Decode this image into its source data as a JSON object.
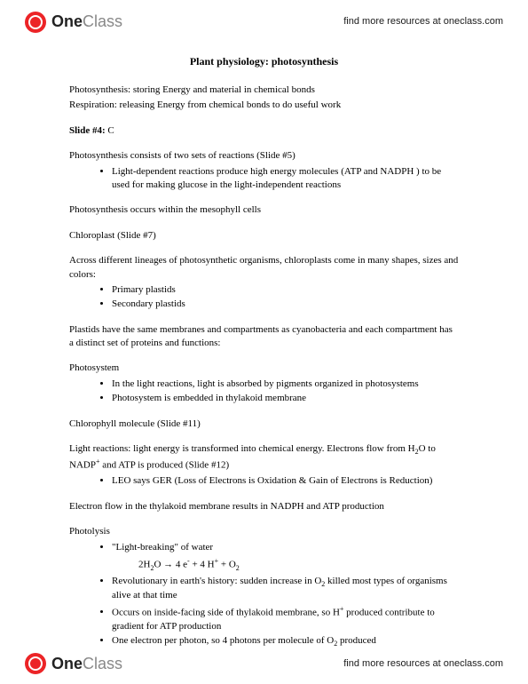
{
  "header": {
    "logo_one": "One",
    "logo_class": "Class",
    "link": "find more resources at oneclass.com"
  },
  "doc": {
    "title": "Plant physiology: photosynthesis",
    "p1": "Photosynthesis: storing Energy and material in chemical bonds",
    "p2": "Respiration: releasing Energy from chemical bonds to do useful work",
    "slide4_label": "Slide #4:",
    "slide4_answer": " C",
    "p3": "Photosynthesis consists of two sets of reactions (Slide #5)",
    "b1": "Light-dependent reactions produce high energy molecules (ATP and NADPH ) to be used for making glucose in the light-independent reactions",
    "p4": "Photosynthesis occurs within the mesophyll cells",
    "p5": "Chloroplast (Slide #7)",
    "p6": "Across different lineages of photosynthetic organisms, chloroplasts come in many shapes, sizes and colors:",
    "b2": "Primary plastids",
    "b3": "Secondary plastids",
    "p7": "Plastids have the same membranes and compartments as cyanobacteria and each compartment has a distinct set of proteins and functions:",
    "p8": "Photosystem",
    "b4": "In the light reactions, light is absorbed by pigments organized in photosystems",
    "b5": "Photosystem is embedded in thylakoid membrane",
    "p9": "Chlorophyll molecule (Slide #11)",
    "p10a": "Light reactions: light energy is transformed into chemical energy. Electrons flow from H",
    "p10b": "O to NADP",
    "p10c": " and ATP is produced (Slide #12)",
    "b6": "LEO says GER (Loss of Electrons is Oxidation & Gain of Electrons is Reduction)",
    "p11": "Electron flow in the thylakoid membrane results in NADPH and ATP production",
    "p12": "Photolysis",
    "b7": "\"Light-breaking\" of water",
    "eq_a": "2H",
    "eq_b": "O → 4 e",
    "eq_c": " + 4 H",
    "eq_d": " + O",
    "b8a": "Revolutionary in earth's history: sudden increase in O",
    "b8b": " killed most types of organisms alive at that time",
    "b9a": "Occurs on inside-facing side of thylakoid membrane, so H",
    "b9b": " produced contribute to gradient for ATP production",
    "b10a": "One electron per photon, so 4 photons per molecule of O",
    "b10b": " produced"
  },
  "sub2": "2",
  "supplus": "+",
  "supminus": "-"
}
